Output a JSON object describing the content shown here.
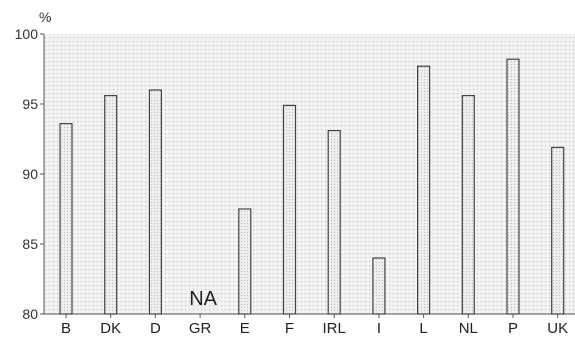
{
  "chart_data": {
    "type": "bar",
    "title": "",
    "xlabel": "",
    "ylabel": "%",
    "ylim": [
      80,
      100
    ],
    "yticks": [
      80,
      85,
      90,
      95,
      100
    ],
    "categories": [
      "B",
      "DK",
      "D",
      "GR",
      "E",
      "F",
      "IRL",
      "I",
      "L",
      "NL",
      "P",
      "UK"
    ],
    "values": [
      93.6,
      95.6,
      96.0,
      null,
      87.5,
      94.9,
      93.1,
      84.0,
      97.7,
      95.6,
      98.2,
      91.9
    ],
    "annotations": [
      {
        "category": "GR",
        "text": "NA"
      }
    ],
    "grid": true,
    "colors": {
      "bar_fill": "#e2e2e2",
      "bar_stroke": "#444444",
      "plot_bg": "#f1f1f1",
      "dots": "#c9c9c9"
    }
  }
}
